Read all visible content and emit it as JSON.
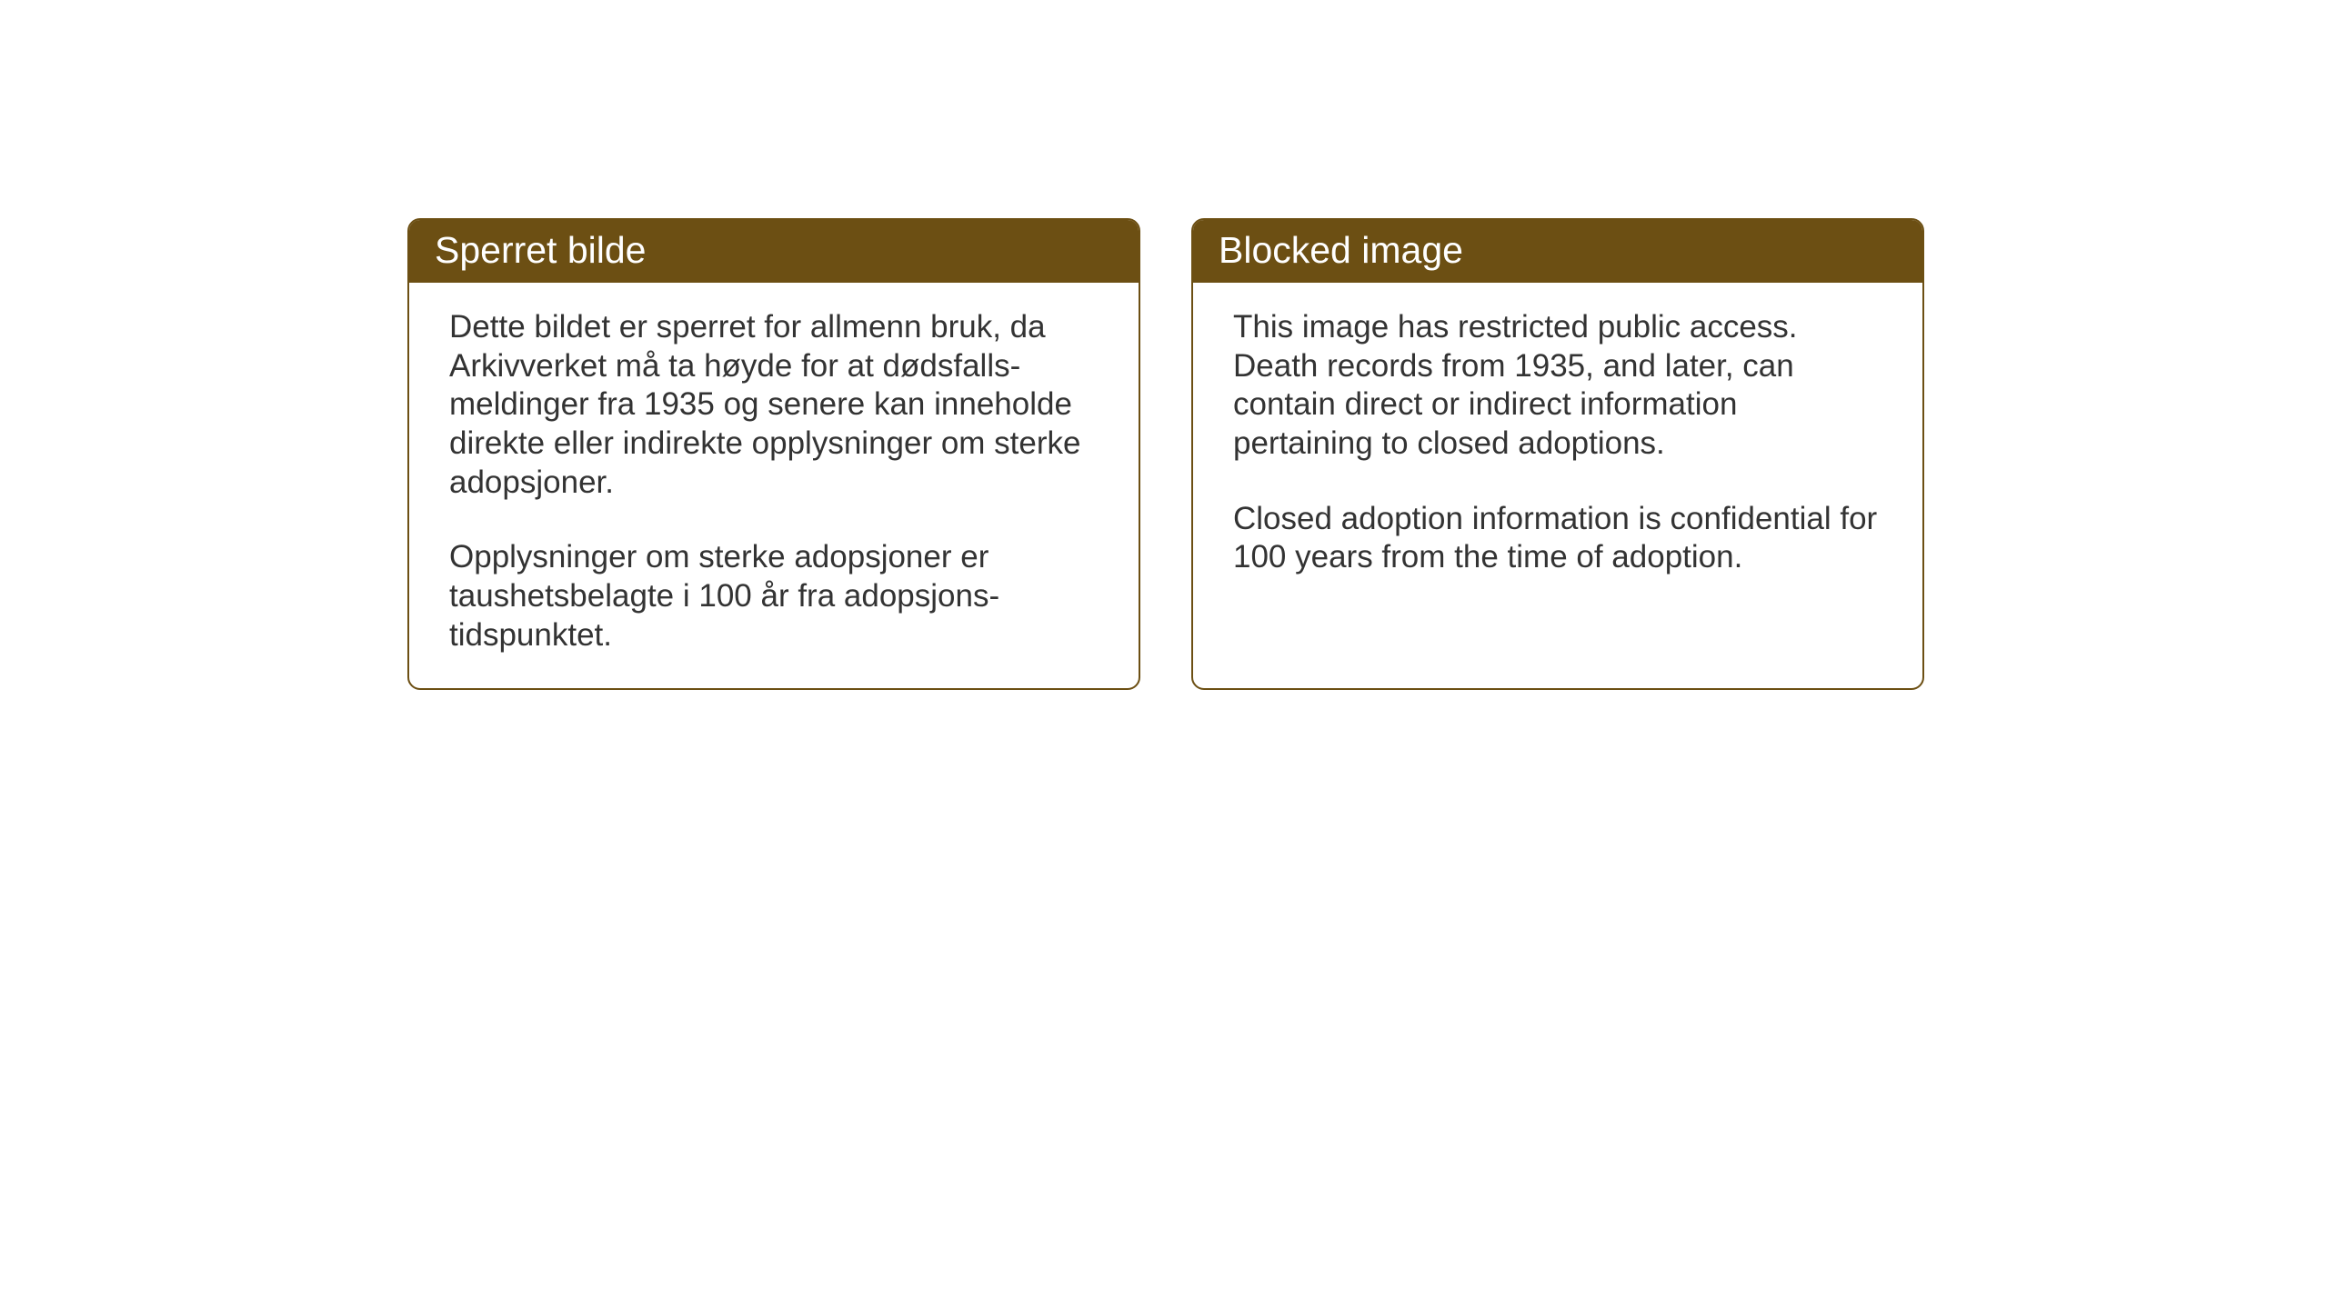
{
  "layout": {
    "background_color": "#ffffff",
    "panel_border_color": "#6c4f13",
    "panel_header_bg": "#6c4f13",
    "panel_header_text_color": "#ffffff",
    "panel_body_text_color": "#333333",
    "panel_border_radius": 14,
    "header_fontsize": 41,
    "body_fontsize": 35
  },
  "left_panel": {
    "title": "Sperret bilde",
    "paragraph1": "Dette bildet er sperret for allmenn bruk, da Arkivverket må ta høyde for at dødsfalls-meldinger fra 1935 og senere kan inneholde direkte eller indirekte opplysninger om sterke adopsjoner.",
    "paragraph2": "Opplysninger om sterke adopsjoner er taushetsbelagte i 100 år fra adopsjons-tidspunktet."
  },
  "right_panel": {
    "title": "Blocked image",
    "paragraph1": "This image has restricted public access. Death records from 1935, and later, can contain direct or indirect information pertaining to closed adoptions.",
    "paragraph2": "Closed adoption information is confidential for 100 years from the time of adoption."
  }
}
